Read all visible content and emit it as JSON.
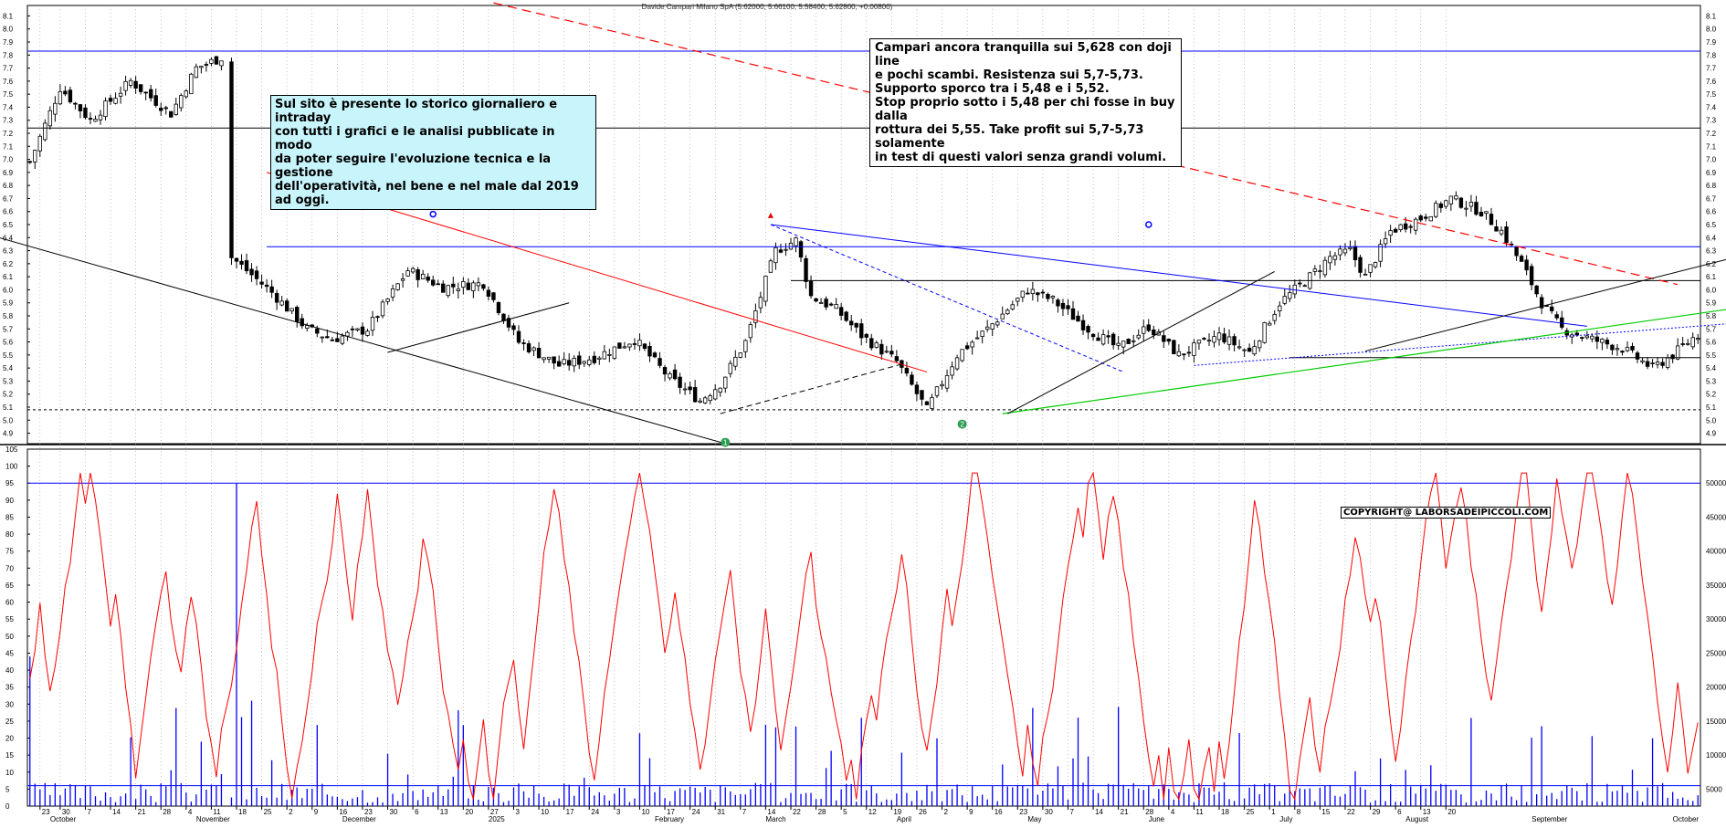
{
  "header": {
    "title": "Davide Campari Milano SpA (5.62000, 5.66100, 5.58400, 5.62800, +0.00800)"
  },
  "notes": {
    "left": "Sul sito è presente lo storico giornaliero e intraday\ncon tutti i grafici e le analisi pubblicate in modo\nda poter seguire l'evoluzione tecnica e la gestione\ndell'operatività, nel bene e nel male dal 2019 ad oggi.",
    "right": "Campari ancora tranquilla sui 5,628  con doji line\ne pochi scambi. Resistenza sui 5,7-5,73.\nSupporto  sporco tra i 5,48 e i 5,52.\nStop proprio sotto i 5,48 per chi fosse in buy dalla\nrottura dei 5,55. Take profit sui 5,7-5,73 solamente\nin test di questi valori senza grandi volumi.",
    "copyright": "COPYRIGHT@ LABORSADEIPICCOLI.COM"
  },
  "colors": {
    "candle": "#000000",
    "oscillator": "#ff0000",
    "volume": "#0000ff",
    "resistance": "#0000ff",
    "trend_red": "#ff0000",
    "trend_green": "#00cc00"
  },
  "chart_data": [
    {
      "type": "candlestick",
      "title": "Davide Campari Milano SpA (5.62000, 5.66100, 5.58400, 5.62800, +0.00800)",
      "ylim": [
        4.82,
        8.18
      ],
      "yticks": [
        "4.9",
        "5.0",
        "5.1",
        "5.2",
        "5.3",
        "5.4",
        "5.5",
        "5.6",
        "5.7",
        "5.8",
        "5.9",
        "6.0",
        "6.1",
        "6.2",
        "6.3",
        "6.4",
        "6.5",
        "6.6",
        "6.7",
        "6.8",
        "6.9",
        "7.0",
        "7.1",
        "7.2",
        "7.3",
        "7.4",
        "7.5",
        "7.6",
        "7.7",
        "7.8",
        "7.9",
        "8.0",
        "8.1"
      ],
      "last": {
        "open": 5.62,
        "high": 5.661,
        "low": 5.584,
        "close": 5.628,
        "change": 0.008
      },
      "close_path": [
        [
          0,
          6.98
        ],
        [
          6,
          7.55
        ],
        [
          12,
          7.3
        ],
        [
          20,
          7.6
        ],
        [
          28,
          7.35
        ],
        [
          33,
          7.7
        ],
        [
          38,
          7.78
        ],
        [
          40,
          6.25
        ],
        [
          48,
          5.98
        ],
        [
          55,
          5.7
        ],
        [
          60,
          5.62
        ],
        [
          67,
          5.7
        ],
        [
          75,
          6.15
        ],
        [
          82,
          6.02
        ],
        [
          90,
          6.05
        ],
        [
          97,
          5.6
        ],
        [
          105,
          5.42
        ],
        [
          112,
          5.48
        ],
        [
          120,
          5.62
        ],
        [
          127,
          5.32
        ],
        [
          133,
          5.15
        ],
        [
          137,
          5.28
        ],
        [
          142,
          5.6
        ],
        [
          148,
          6.3
        ],
        [
          152,
          6.38
        ],
        [
          155,
          5.95
        ],
        [
          160,
          5.85
        ],
        [
          165,
          5.65
        ],
        [
          172,
          5.45
        ],
        [
          178,
          5.08
        ],
        [
          184,
          5.5
        ],
        [
          190,
          5.7
        ],
        [
          198,
          6.0
        ],
        [
          203,
          5.92
        ],
        [
          210,
          5.7
        ],
        [
          216,
          5.55
        ],
        [
          222,
          5.72
        ],
        [
          228,
          5.5
        ],
        [
          236,
          5.65
        ],
        [
          242,
          5.52
        ],
        [
          248,
          5.9
        ],
        [
          254,
          6.1
        ],
        [
          258,
          6.25
        ],
        [
          262,
          6.3
        ],
        [
          265,
          6.1
        ],
        [
          270,
          6.45
        ],
        [
          276,
          6.55
        ],
        [
          282,
          6.7
        ],
        [
          288,
          6.6
        ],
        [
          292,
          6.45
        ],
        [
          296,
          6.2
        ],
        [
          300,
          5.9
        ],
        [
          304,
          5.7
        ],
        [
          310,
          5.62
        ],
        [
          316,
          5.55
        ],
        [
          322,
          5.4
        ],
        [
          326,
          5.5
        ],
        [
          330,
          5.63
        ]
      ],
      "annotations": {
        "dates_xaxis": [
          [
            2,
            "23"
          ],
          [
            6,
            "30"
          ],
          [
            11,
            "7"
          ],
          [
            16,
            "14"
          ],
          [
            21,
            "21"
          ],
          [
            26,
            "28"
          ],
          [
            31,
            "4"
          ],
          [
            36,
            "11"
          ],
          [
            41,
            "18"
          ],
          [
            46,
            "25"
          ],
          [
            51,
            "2"
          ],
          [
            56,
            "9"
          ],
          [
            61,
            "16"
          ],
          [
            66,
            "23"
          ],
          [
            71,
            "30"
          ],
          [
            76,
            "6"
          ],
          [
            81,
            "13"
          ],
          [
            86,
            "20"
          ],
          [
            91,
            "27"
          ],
          [
            96,
            "3"
          ],
          [
            101,
            "10"
          ],
          [
            106,
            "17"
          ],
          [
            111,
            "24"
          ],
          [
            116,
            "3"
          ],
          [
            121,
            "10"
          ],
          [
            126,
            "17"
          ],
          [
            131,
            "24"
          ],
          [
            136,
            "31"
          ],
          [
            141,
            "7"
          ],
          [
            146,
            "14"
          ],
          [
            151,
            "22"
          ],
          [
            156,
            "28"
          ],
          [
            161,
            "5"
          ],
          [
            166,
            "12"
          ],
          [
            171,
            "19"
          ],
          [
            176,
            "26"
          ],
          [
            181,
            "2"
          ],
          [
            186,
            "9"
          ],
          [
            191,
            "16"
          ],
          [
            196,
            "23"
          ],
          [
            201,
            "30"
          ],
          [
            206,
            "7"
          ],
          [
            211,
            "14"
          ],
          [
            216,
            "21"
          ],
          [
            221,
            "28"
          ],
          [
            226,
            "4"
          ],
          [
            231,
            "11"
          ],
          [
            236,
            "18"
          ],
          [
            241,
            "25"
          ],
          [
            246,
            "1"
          ],
          [
            251,
            "8"
          ],
          [
            256,
            "15"
          ],
          [
            261,
            "22"
          ],
          [
            266,
            "29"
          ],
          [
            271,
            "6"
          ],
          [
            276,
            "13"
          ],
          [
            281,
            "20"
          ]
        ],
        "months": [
          [
            4,
            "October"
          ],
          [
            33,
            "November"
          ],
          [
            62,
            "December"
          ],
          [
            91,
            "2025"
          ],
          [
            124,
            "February"
          ],
          [
            146,
            "March"
          ],
          [
            172,
            "April"
          ],
          [
            198,
            "May"
          ],
          [
            222,
            "June"
          ],
          [
            248,
            "July"
          ],
          [
            273,
            "August"
          ],
          [
            298,
            "September"
          ],
          [
            326,
            "October"
          ]
        ],
        "markers": [
          {
            "label": "1",
            "color": "#2e9e55",
            "x": 138,
            "y": 4.83
          },
          {
            "label": "2",
            "color": "#2e9e55",
            "x": 185,
            "y": 4.97
          }
        ],
        "horizontal_levels": [
          7.83,
          7.24,
          6.33,
          6.07,
          5.48,
          5.08
        ]
      }
    },
    {
      "type": "line",
      "name": "oscillator",
      "ylim": [
        0,
        105
      ],
      "yticks": [
        "0",
        "5",
        "10",
        "15",
        "20",
        "25",
        "30",
        "35",
        "40",
        "45",
        "50",
        "55",
        "60",
        "65",
        "70",
        "75",
        "80",
        "85",
        "90",
        "95",
        "100",
        "105"
      ],
      "levels": [
        95,
        6
      ]
    },
    {
      "type": "bar",
      "name": "volume",
      "yticks": [
        "5000",
        "10000",
        "15000",
        "20000",
        "25000",
        "30000",
        "35000",
        "40000",
        "45000",
        "50000"
      ]
    }
  ]
}
